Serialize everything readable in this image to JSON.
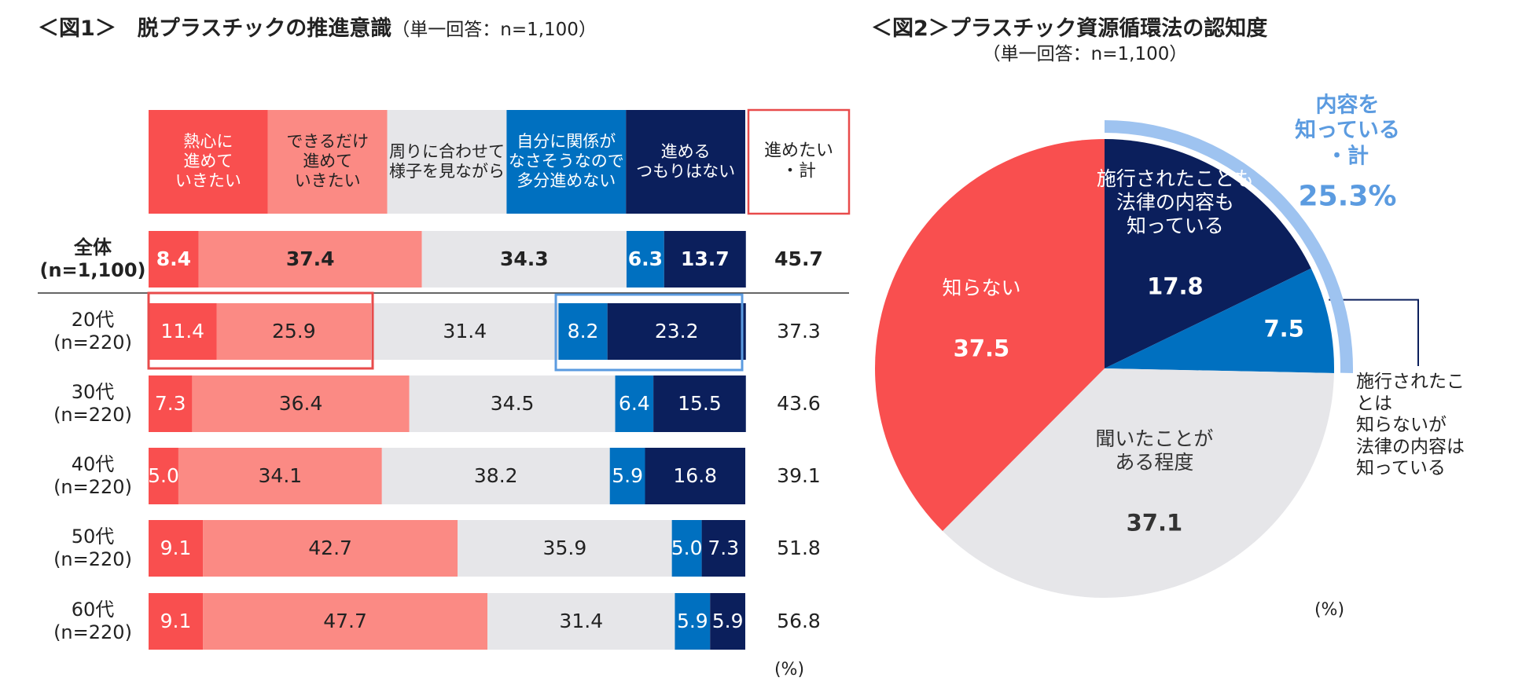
{
  "chart_data": [
    {
      "type": "bar",
      "orientation": "horizontal",
      "stacked": true,
      "title": "＜図1＞　脱プラスチックの推進意識",
      "subtitle": "（単一回答：n=1,100）",
      "categories": [
        "全体\n(n=1,100)",
        "20代\n(n=220)",
        "30代\n(n=220)",
        "40代\n(n=220)",
        "50代\n(n=220)",
        "60代\n(n=220)"
      ],
      "series": [
        {
          "name": "熱心に\n進めて\nいきたい",
          "color": "#f94f4f",
          "values": [
            8.4,
            11.4,
            7.3,
            5.0,
            9.1,
            9.1
          ],
          "value_labels": [
            "8.4",
            "11.4",
            "7.3",
            "5.0",
            "9.1",
            "9.1"
          ]
        },
        {
          "name": "できるだけ\n進めて\nいきたい",
          "color": "#fb8a84",
          "values": [
            37.4,
            25.9,
            36.4,
            34.1,
            42.7,
            47.7
          ],
          "value_labels": [
            "37.4",
            "25.9",
            "36.4",
            "34.1",
            "42.7",
            "47.7"
          ]
        },
        {
          "name": "周りに合わせて\n様子を見ながら",
          "color": "#e6e6e9",
          "values": [
            34.3,
            31.4,
            34.5,
            38.2,
            35.9,
            31.4
          ],
          "value_labels": [
            "34.3",
            "31.4",
            "34.5",
            "38.2",
            "35.9",
            "31.4"
          ]
        },
        {
          "name": "自分に関係が\nなさそうなので\n多分進めない",
          "color": "#0070c0",
          "values": [
            6.3,
            8.2,
            6.4,
            5.9,
            5.0,
            5.9
          ],
          "value_labels": [
            "6.3",
            "8.2",
            "6.4",
            "5.9",
            "5.0",
            "5.9"
          ]
        },
        {
          "name": "進める\nつもりはない",
          "color": "#0b1f5c",
          "values": [
            13.7,
            23.2,
            15.5,
            16.8,
            7.3,
            5.9
          ],
          "value_labels": [
            "13.7",
            "23.2",
            "15.5",
            "16.8",
            "7.3",
            "5.9"
          ]
        }
      ],
      "totals": {
        "name": "進めたい\n・計",
        "values": [
          45.7,
          37.3,
          43.6,
          39.1,
          51.8,
          56.8
        ]
      },
      "xlim": [
        0,
        100
      ],
      "unit": "(%)"
    },
    {
      "type": "pie",
      "title": "＜図2＞プラスチック資源循環法の認知度",
      "subtitle": "（単一回答：n=1,100）",
      "labels": [
        "施行されたことも\n法律の内容も\n知っている",
        "施行されたことは\n知らないが\n法律の内容は\n知っている",
        "聞いたことが\nある程度",
        "知らない"
      ],
      "values": [
        17.8,
        7.5,
        37.1,
        37.5
      ],
      "colors": [
        "#0b1f5c",
        "#0070c0",
        "#e6e6e9",
        "#f94f4f"
      ],
      "annotation": {
        "label": "内容を\n知っている\n・計",
        "value": 25.3,
        "value_label": "25.3%",
        "color": "#9ec3f0"
      },
      "unit": "(%)"
    }
  ]
}
